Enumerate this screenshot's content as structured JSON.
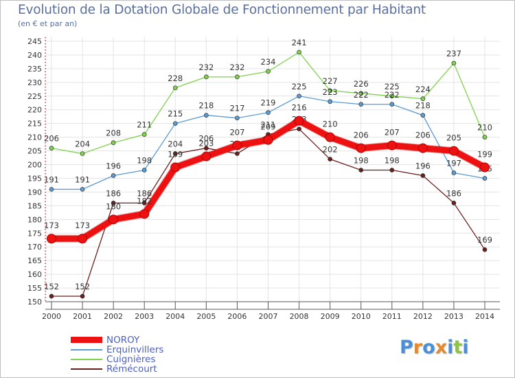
{
  "title": "Evolution de la Dotation Globale de Fonctionnement par Habitant",
  "subtitle": "(en € et par an)",
  "logo": {
    "text": [
      "P",
      "r",
      "o",
      "x",
      "i",
      "t",
      "i"
    ],
    "colors": [
      "#4a90d9",
      "#e68a2e",
      "#4a90d9",
      "#e68a2e",
      "#4a90d9",
      "#8cc63f",
      "#4a90d9"
    ]
  },
  "chart_data": {
    "type": "line",
    "title": "Evolution de la Dotation Globale de Fonctionnement par Habitant",
    "ylabel": "(en € et par an)",
    "xlabel": "",
    "x": [
      "2000",
      "2001",
      "2002",
      "2003",
      "2004",
      "2005",
      "2006",
      "2007",
      "2008",
      "2009",
      "2010",
      "2011",
      "2012",
      "2013",
      "2014"
    ],
    "ylim": [
      150,
      245
    ],
    "yticks": [
      "150",
      "155",
      "160",
      "165",
      "170",
      "175",
      "180",
      "185",
      "190",
      "195",
      "200",
      "205",
      "210",
      "215",
      "220",
      "225",
      "230",
      "235",
      "240",
      "245"
    ],
    "grid": true,
    "legend_position": "bottom-left",
    "series": [
      {
        "name": "Cuignières",
        "color": "#7fd24c",
        "values": [
          206,
          204,
          208,
          211,
          228,
          232,
          232,
          234,
          241,
          227,
          226,
          225,
          224,
          237,
          210
        ],
        "labels": [
          "206",
          "204",
          "208",
          "211",
          "228",
          "232",
          "232",
          "234",
          "241",
          "227",
          "226",
          "225",
          "224",
          "237",
          "210"
        ]
      },
      {
        "name": "Erquinvillers",
        "color": "#5a9bd4",
        "values": [
          191,
          191,
          196,
          198,
          215,
          218,
          217,
          219,
          225,
          223,
          222,
          222,
          218,
          197,
          195
        ],
        "labels": [
          "191",
          "191",
          "196",
          "198",
          "215",
          "218",
          "217",
          "219",
          "225",
          "223",
          "222",
          "222",
          "218",
          "197",
          "195"
        ]
      },
      {
        "name": "Rémécourt",
        "color": "#6b1e1e",
        "values": [
          152,
          152,
          186,
          186,
          204,
          206,
          204,
          211,
          213,
          202,
          198,
          198,
          196,
          186,
          169
        ],
        "labels": [
          "152",
          "152",
          "186",
          "186",
          "204",
          "206",
          "204",
          "211",
          "213",
          "202",
          "198",
          "198",
          "196",
          "186",
          "169"
        ]
      },
      {
        "name": "NOROY",
        "color": "#ee1111",
        "values": [
          173,
          173,
          180,
          182,
          199,
          203,
          207,
          209,
          216,
          210,
          206,
          207,
          206,
          205,
          199
        ],
        "labels": [
          "173",
          "173",
          "180",
          "182",
          "199",
          "203",
          "207",
          "209",
          "216",
          "210",
          "206",
          "207",
          "206",
          "205",
          "199"
        ]
      }
    ],
    "legend": [
      "NOROY",
      "Erquinvillers",
      "Cuignières",
      "Rémécourt"
    ]
  }
}
